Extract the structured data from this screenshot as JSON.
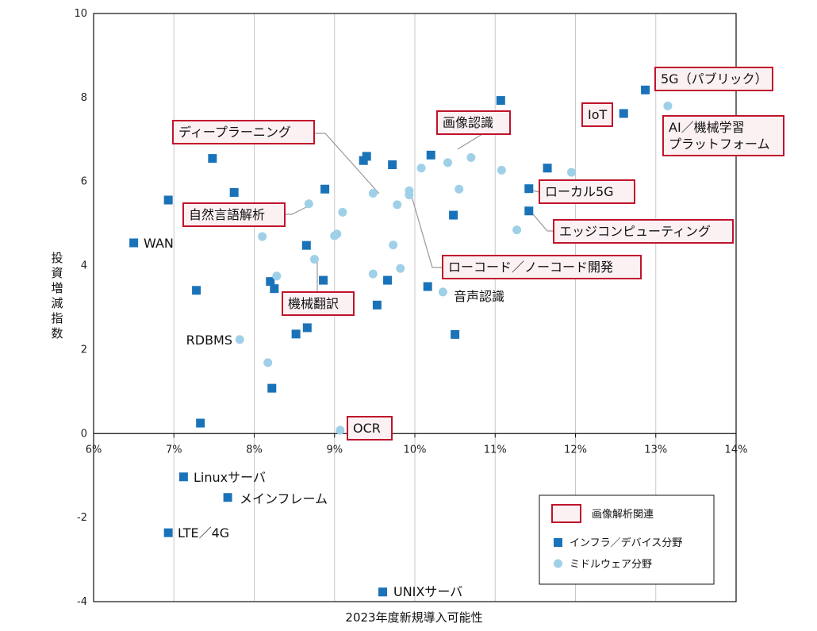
{
  "chart_data": {
    "type": "scatter",
    "title": "",
    "xlabel": "2023年度新規導入可能性",
    "ylabel": "投資増減指数",
    "xlim": [
      6,
      14
    ],
    "ylim": [
      -4,
      10
    ],
    "x_unit": "%",
    "x_ticks": [
      "6%",
      "7%",
      "8%",
      "9%",
      "10%",
      "11%",
      "12%",
      "13%",
      "14%"
    ],
    "y_ticks": [
      "-4",
      "-2",
      "0",
      "2",
      "4",
      "6",
      "8",
      "10"
    ],
    "grid": "vertical",
    "legend": {
      "position": "bottom-right",
      "entries": [
        "画像解析関連",
        "インフラ／デバイス分野",
        "ミドルウェア分野"
      ]
    },
    "colors": {
      "infra": "#1a73b8",
      "middleware": "#9fd0e8",
      "highlight_border": "#c0132b",
      "highlight_fill": "#fbf1f3",
      "grid": "#c8c8c8",
      "leader": "#999999"
    },
    "series": [
      {
        "name": "インフラ／デバイス分野",
        "marker": "square",
        "points": [
          {
            "x": 12.87,
            "y": 8.18
          },
          {
            "x": 12.6,
            "y": 7.62
          },
          {
            "x": 11.07,
            "y": 7.93
          },
          {
            "x": 11.65,
            "y": 6.32
          },
          {
            "x": 11.42,
            "y": 5.83
          },
          {
            "x": 11.42,
            "y": 5.3
          },
          {
            "x": 10.48,
            "y": 5.2
          },
          {
            "x": 10.2,
            "y": 6.63
          },
          {
            "x": 9.72,
            "y": 6.4
          },
          {
            "x": 9.4,
            "y": 6.6
          },
          {
            "x": 9.36,
            "y": 6.5
          },
          {
            "x": 8.88,
            "y": 5.82
          },
          {
            "x": 7.48,
            "y": 6.55
          },
          {
            "x": 7.75,
            "y": 5.74
          },
          {
            "x": 6.93,
            "y": 5.56
          },
          {
            "x": 6.5,
            "y": 4.54
          },
          {
            "x": 7.28,
            "y": 3.41
          },
          {
            "x": 8.2,
            "y": 3.62
          },
          {
            "x": 8.25,
            "y": 3.45
          },
          {
            "x": 8.65,
            "y": 4.48
          },
          {
            "x": 8.86,
            "y": 3.65
          },
          {
            "x": 9.53,
            "y": 3.06
          },
          {
            "x": 9.66,
            "y": 3.65
          },
          {
            "x": 10.16,
            "y": 3.5
          },
          {
            "x": 8.66,
            "y": 2.52
          },
          {
            "x": 8.52,
            "y": 2.37
          },
          {
            "x": 10.5,
            "y": 2.36
          },
          {
            "x": 8.22,
            "y": 1.08
          },
          {
            "x": 7.33,
            "y": 0.25
          },
          {
            "x": 7.12,
            "y": -1.03
          },
          {
            "x": 7.67,
            "y": -1.52
          },
          {
            "x": 6.93,
            "y": -2.36
          },
          {
            "x": 9.6,
            "y": -3.77
          }
        ]
      },
      {
        "name": "ミドルウェア分野",
        "marker": "circle",
        "points": [
          {
            "x": 13.15,
            "y": 7.8
          },
          {
            "x": 11.95,
            "y": 6.22
          },
          {
            "x": 11.08,
            "y": 6.27
          },
          {
            "x": 10.7,
            "y": 6.57
          },
          {
            "x": 10.41,
            "y": 6.45
          },
          {
            "x": 10.08,
            "y": 6.32
          },
          {
            "x": 10.55,
            "y": 5.82
          },
          {
            "x": 9.93,
            "y": 5.78
          },
          {
            "x": 9.93,
            "y": 5.68
          },
          {
            "x": 9.48,
            "y": 5.72
          },
          {
            "x": 9.78,
            "y": 5.45
          },
          {
            "x": 11.27,
            "y": 4.85
          },
          {
            "x": 8.68,
            "y": 5.47
          },
          {
            "x": 9.1,
            "y": 5.27
          },
          {
            "x": 9.03,
            "y": 4.75
          },
          {
            "x": 9.0,
            "y": 4.71
          },
          {
            "x": 8.1,
            "y": 4.69
          },
          {
            "x": 9.73,
            "y": 4.49
          },
          {
            "x": 8.75,
            "y": 4.15
          },
          {
            "x": 9.82,
            "y": 3.93
          },
          {
            "x": 9.48,
            "y": 3.8
          },
          {
            "x": 8.28,
            "y": 3.75
          },
          {
            "x": 10.35,
            "y": 3.37
          },
          {
            "x": 7.82,
            "y": 2.24
          },
          {
            "x": 8.17,
            "y": 1.69
          },
          {
            "x": 9.07,
            "y": 0.08
          }
        ]
      }
    ],
    "annotations": [
      {
        "text": "5G（パブリック）",
        "boxed": true,
        "anchor": {
          "x": 12.87,
          "y": 8.18
        }
      },
      {
        "text": "IoT",
        "boxed": true,
        "anchor": {
          "x": 12.6,
          "y": 7.62
        }
      },
      {
        "text": "AI／機械学習\nプラットフォーム",
        "boxed": true,
        "anchor": {
          "x": 13.15,
          "y": 7.8
        }
      },
      {
        "text": "画像認識",
        "boxed": true,
        "anchor": {
          "x": 10.41,
          "y": 6.45
        },
        "leader": true
      },
      {
        "text": "ディープラーニング",
        "boxed": true,
        "anchor": {
          "x": 9.48,
          "y": 5.72
        },
        "leader": true
      },
      {
        "text": "ローカル5G",
        "boxed": true,
        "anchor": {
          "x": 11.42,
          "y": 5.83
        },
        "leader": true
      },
      {
        "text": "自然言語解析",
        "boxed": true,
        "anchor": {
          "x": 8.68,
          "y": 5.47
        },
        "leader": true
      },
      {
        "text": "エッジコンピューティング",
        "boxed": true,
        "anchor": {
          "x": 11.42,
          "y": 5.3
        },
        "leader": true
      },
      {
        "text": "ローコード／ノーコード開発",
        "boxed": true,
        "anchor": {
          "x": 9.93,
          "y": 5.68
        },
        "leader": true
      },
      {
        "text": "機械翻訳",
        "boxed": true,
        "anchor": {
          "x": 8.75,
          "y": 4.15
        },
        "leader": true
      },
      {
        "text": "OCR",
        "boxed": true,
        "anchor": {
          "x": 9.07,
          "y": 0.08
        }
      },
      {
        "text": "WAN",
        "boxed": false,
        "anchor": {
          "x": 6.5,
          "y": 4.54
        }
      },
      {
        "text": "音声認識",
        "boxed": false,
        "anchor": {
          "x": 10.35,
          "y": 3.37
        }
      },
      {
        "text": "RDBMS",
        "boxed": false,
        "anchor": {
          "x": 7.82,
          "y": 2.24
        }
      },
      {
        "text": "Linuxサーバ",
        "boxed": false,
        "anchor": {
          "x": 7.12,
          "y": -1.03
        }
      },
      {
        "text": "メインフレーム",
        "boxed": false,
        "anchor": {
          "x": 7.67,
          "y": -1.52
        }
      },
      {
        "text": "LTE／4G",
        "boxed": false,
        "anchor": {
          "x": 6.93,
          "y": -2.36
        }
      },
      {
        "text": "UNIXサーバ",
        "boxed": false,
        "anchor": {
          "x": 9.6,
          "y": -3.77
        }
      }
    ]
  }
}
